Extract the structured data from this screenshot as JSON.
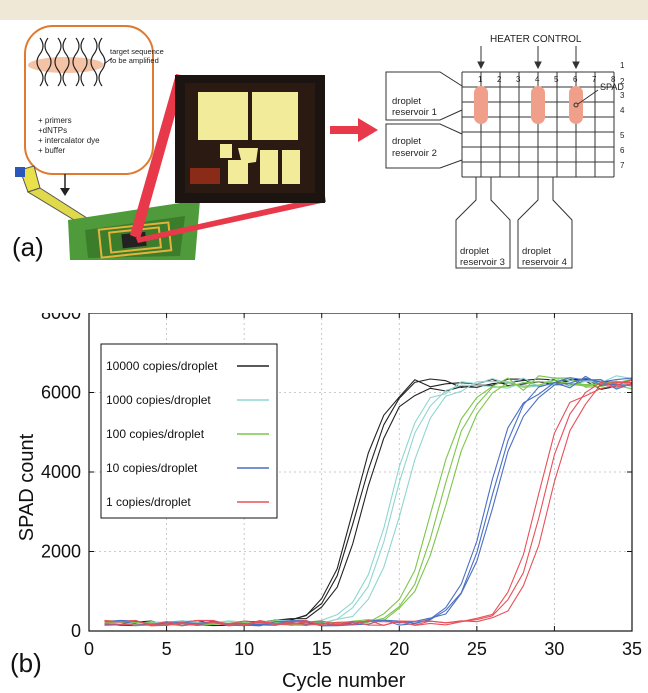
{
  "panel_a": {
    "label": "(a)",
    "reagent_box": {
      "target_text_line1": "target sequence",
      "target_text_line2": "to be amplified",
      "items": [
        "+ primers",
        "+dNTPs",
        "+ intercalator dye",
        "+ buffer"
      ]
    },
    "schematic": {
      "heater_control": "HEATER CONTROL",
      "column_numbers": [
        "1",
        "2",
        "3",
        "4",
        "5",
        "6",
        "7",
        "8"
      ],
      "row_numbers": [
        "1",
        "2",
        "3",
        "4",
        "5",
        "6",
        "7"
      ],
      "spad_label": "SPAD",
      "reservoirs": [
        {
          "line1": "droplet",
          "line2": "reservoir 1"
        },
        {
          "line1": "droplet",
          "line2": "reservoir 2"
        },
        {
          "line1": "droplet",
          "line2": "reservoir 3"
        },
        {
          "line1": "droplet",
          "line2": "reservoir 4"
        }
      ],
      "heater_color": "#f0a08a",
      "arrow_color": "#e8394a"
    }
  },
  "panel_b": {
    "label": "(b)",
    "xlabel": "Cycle number",
    "ylabel": "SPAD count"
  },
  "chart_data": {
    "type": "line",
    "xlabel": "Cycle number",
    "ylabel": "SPAD count",
    "xlim": [
      0,
      35
    ],
    "ylim": [
      0,
      8000
    ],
    "xticks": [
      0,
      5,
      10,
      15,
      20,
      25,
      30,
      35
    ],
    "yticks": [
      0,
      2000,
      4000,
      6000,
      8000
    ],
    "grid": true,
    "legend_position": "top-left",
    "series": [
      {
        "name": "10000 copies/droplet",
        "color": "#222222",
        "midpoint": 17.5,
        "replicates": 3
      },
      {
        "name": "1000 copies/droplet",
        "color": "#8fd6d0",
        "midpoint": 19.8,
        "replicates": 3
      },
      {
        "name": "100 copies/droplet",
        "color": "#7cc54a",
        "midpoint": 22.6,
        "replicates": 3
      },
      {
        "name": "10 copies/droplet",
        "color": "#4a6fc4",
        "midpoint": 25.8,
        "replicates": 3
      },
      {
        "name": "1 copies/droplet",
        "color": "#e8505a",
        "midpoint": 29.2,
        "replicates": 3
      }
    ],
    "baseline": 200,
    "plateau": 6250
  }
}
